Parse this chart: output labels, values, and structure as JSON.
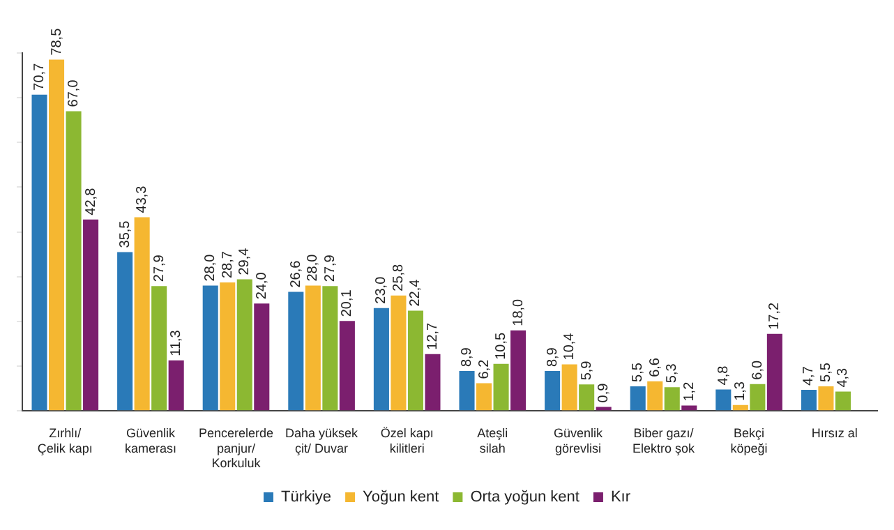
{
  "chart_data": {
    "type": "bar",
    "categories": [
      "Zırhlı/ Çelik kapı",
      "Güvenlik kamerası",
      "Pencerelerde panjur/ Korkuluk",
      "Daha yüksek çit/ Duvar",
      "Özel kapı kilitleri",
      "Ateşli silah",
      "Güvenlik görevlisi",
      "Biber gazı/ Elektro şok",
      "Bekçi köpeği",
      "Hırsız al"
    ],
    "series": [
      {
        "name": "Türkiye",
        "color": "#2a7ab8",
        "values": [
          70.7,
          35.5,
          28.0,
          26.6,
          23.0,
          8.9,
          8.9,
          5.5,
          4.8,
          4.7
        ],
        "value_labels": [
          "70,7",
          "35,5",
          "28,0",
          "26,6",
          "23,0",
          "8,9",
          "8,9",
          "5,5",
          "4,8",
          "4,7"
        ]
      },
      {
        "name": "Yoğun kent",
        "color": "#f5b731",
        "values": [
          78.5,
          43.3,
          28.7,
          28.0,
          25.8,
          6.2,
          10.4,
          6.6,
          1.3,
          5.5
        ],
        "value_labels": [
          "78,5",
          "43,3",
          "28,7",
          "28,0",
          "25,8",
          "6,2",
          "10,4",
          "6,6",
          "1,3",
          "5,5"
        ]
      },
      {
        "name": "Orta yoğun kent",
        "color": "#8cb832",
        "values": [
          67.0,
          27.9,
          29.4,
          27.9,
          22.4,
          10.5,
          5.9,
          5.3,
          6.0,
          4.3
        ],
        "value_labels": [
          "67,0",
          "27,9",
          "29,4",
          "27,9",
          "22,4",
          "10,5",
          "5,9",
          "5,3",
          "6,0",
          "4,3"
        ]
      },
      {
        "name": "Kır",
        "color": "#7b1f6e",
        "values": [
          42.8,
          11.3,
          24.0,
          20.1,
          12.7,
          18.0,
          0.9,
          1.2,
          17.2,
          null
        ],
        "value_labels": [
          "42,8",
          "11,3",
          "24,0",
          "20,1",
          "12,7",
          "18,0",
          "0,9",
          "1,2",
          "17,2",
          null
        ]
      }
    ],
    "legend": "bottom",
    "tick_labels": "x",
    "grid": false
  }
}
